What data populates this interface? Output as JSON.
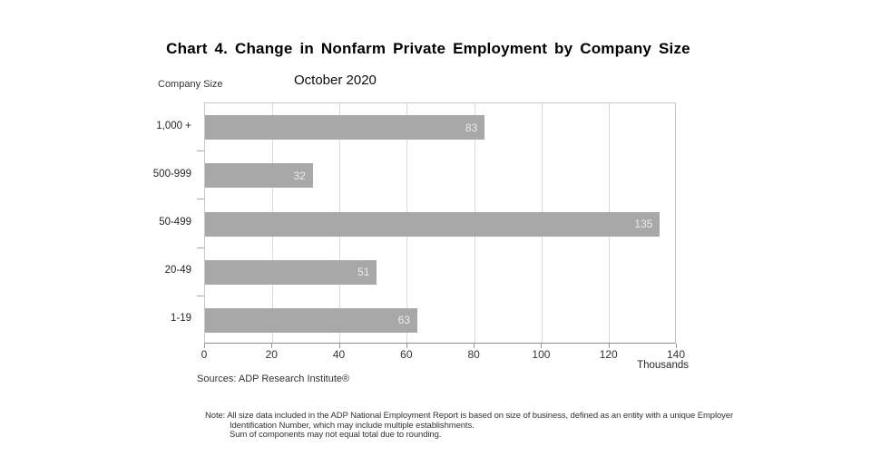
{
  "page": {
    "background_color": "#ffffff"
  },
  "chart_data": {
    "type": "bar",
    "orientation": "horizontal",
    "title": "Chart 4. Change in Nonfarm Private Employment by Company Size",
    "subtitle": "October 2020",
    "category_axis_label": "Company Size",
    "categories": [
      "1,000 +",
      "500-999",
      "50-499",
      "20-49",
      "1-19"
    ],
    "values": [
      83,
      32,
      135,
      51,
      63
    ],
    "value_labels": [
      "83",
      "32",
      "135",
      "51",
      "63"
    ],
    "xlim": [
      0,
      140
    ],
    "xtick_labels": [
      "0",
      "20",
      "40",
      "60",
      "80",
      "100",
      "120",
      "140"
    ],
    "xtick_values": [
      0,
      20,
      40,
      60,
      80,
      100,
      120,
      140
    ],
    "unit_label": "Thousands",
    "grid": true,
    "legend_position": "none",
    "bar_color": "#a8a8a8",
    "value_label_color": "#ececec",
    "gridline_color": "#d9d9d9",
    "plot_border_color": "#c6c6c6",
    "axis_line_color": "#8c8c8c"
  },
  "footer": {
    "sources": "Sources: ADP Research Institute®",
    "note_lines": [
      "Note:  All size data included in the ADP National Employment Report is based on size of business, defined as an entity with a unique Employer",
      "Identification Number, which may include multiple establishments.",
      "Sum of components may not equal total due to rounding."
    ]
  }
}
